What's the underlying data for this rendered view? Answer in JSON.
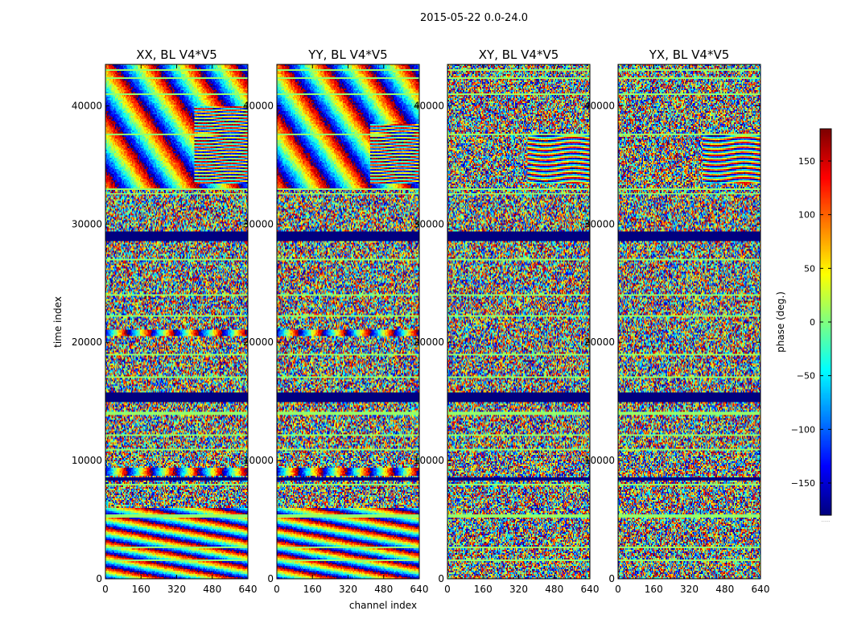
{
  "chart_data": {
    "type": "heatmap",
    "suptitle": "2015-05-22 0.0-24.0",
    "xlabel": "channel index",
    "ylabel": "time index",
    "xlim": [
      0,
      640
    ],
    "ylim": [
      0,
      43500
    ],
    "xticks": [
      0,
      160,
      320,
      480,
      640
    ],
    "yticks": [
      0,
      10000,
      20000,
      30000,
      40000
    ],
    "colorscale": "jet",
    "colorbar": {
      "label": "phase (deg.)",
      "range": [
        -180,
        180
      ],
      "ticks": [
        -150,
        -100,
        -50,
        0,
        50,
        100,
        150
      ],
      "tick_labels": [
        "−150",
        "−100",
        "−50",
        "0",
        "50",
        "100",
        "150"
      ],
      "footer": "......"
    },
    "panels": [
      {
        "title": "XX, BL V4*V5",
        "fringes": [
          {
            "t0": 33000,
            "t1": 43500,
            "c0": 0,
            "c1": 640,
            "freq": 3.5,
            "slope": 0.0002
          },
          {
            "t0": 20500,
            "t1": 21100,
            "c0": 0,
            "c1": 640,
            "freq": 6,
            "slope": 0
          },
          {
            "t0": 8700,
            "t1": 9400,
            "c0": 0,
            "c1": 640,
            "freq": 6,
            "slope": 0
          },
          {
            "t0": 0,
            "t1": 6000,
            "c0": 0,
            "c1": 640,
            "freq": 2,
            "slope": 0.0009
          }
        ],
        "sub_fringes": [
          {
            "t0": 33500,
            "t1": 40000,
            "c0": 400,
            "c1": 640,
            "freq": 20,
            "slope": 0.004
          }
        ]
      },
      {
        "title": "YY, BL V4*V5",
        "fringes": [
          {
            "t0": 33000,
            "t1": 43500,
            "c0": 0,
            "c1": 640,
            "freq": 3.5,
            "slope": 0.0002
          },
          {
            "t0": 20500,
            "t1": 21100,
            "c0": 0,
            "c1": 640,
            "freq": 6,
            "slope": 0
          },
          {
            "t0": 8700,
            "t1": 9400,
            "c0": 0,
            "c1": 640,
            "freq": 6,
            "slope": 0
          },
          {
            "t0": 0,
            "t1": 6000,
            "c0": 0,
            "c1": 640,
            "freq": 2,
            "slope": 0.0009
          }
        ],
        "sub_fringes": [
          {
            "t0": 33500,
            "t1": 38500,
            "c0": 420,
            "c1": 640,
            "freq": 20,
            "slope": 0.004
          }
        ]
      },
      {
        "title": "XY, BL V4*V5",
        "fringes": [],
        "sub_fringes": [
          {
            "t0": 33500,
            "t1": 37500,
            "c0": 360,
            "c1": 640,
            "freq": 18,
            "slope": 0.005
          }
        ]
      },
      {
        "title": "YX, BL V4*V5",
        "fringes": [],
        "sub_fringes": [
          {
            "t0": 33500,
            "t1": 37500,
            "c0": 380,
            "c1": 640,
            "freq": 18,
            "slope": 0.005
          }
        ]
      }
    ],
    "flagged_bands": [
      {
        "t0": 28500,
        "t1": 29300,
        "value": -180
      },
      {
        "t0": 15000,
        "t1": 15800,
        "value": -180
      },
      {
        "t0": 8300,
        "t1": 8500,
        "value": -180
      }
    ],
    "constant_lines": [
      43000,
      42300,
      41000,
      37600,
      33000,
      32500,
      27000,
      24000,
      22200,
      19000,
      17000,
      14000,
      12200,
      11000,
      7900,
      5300,
      2600,
      1600
    ]
  }
}
